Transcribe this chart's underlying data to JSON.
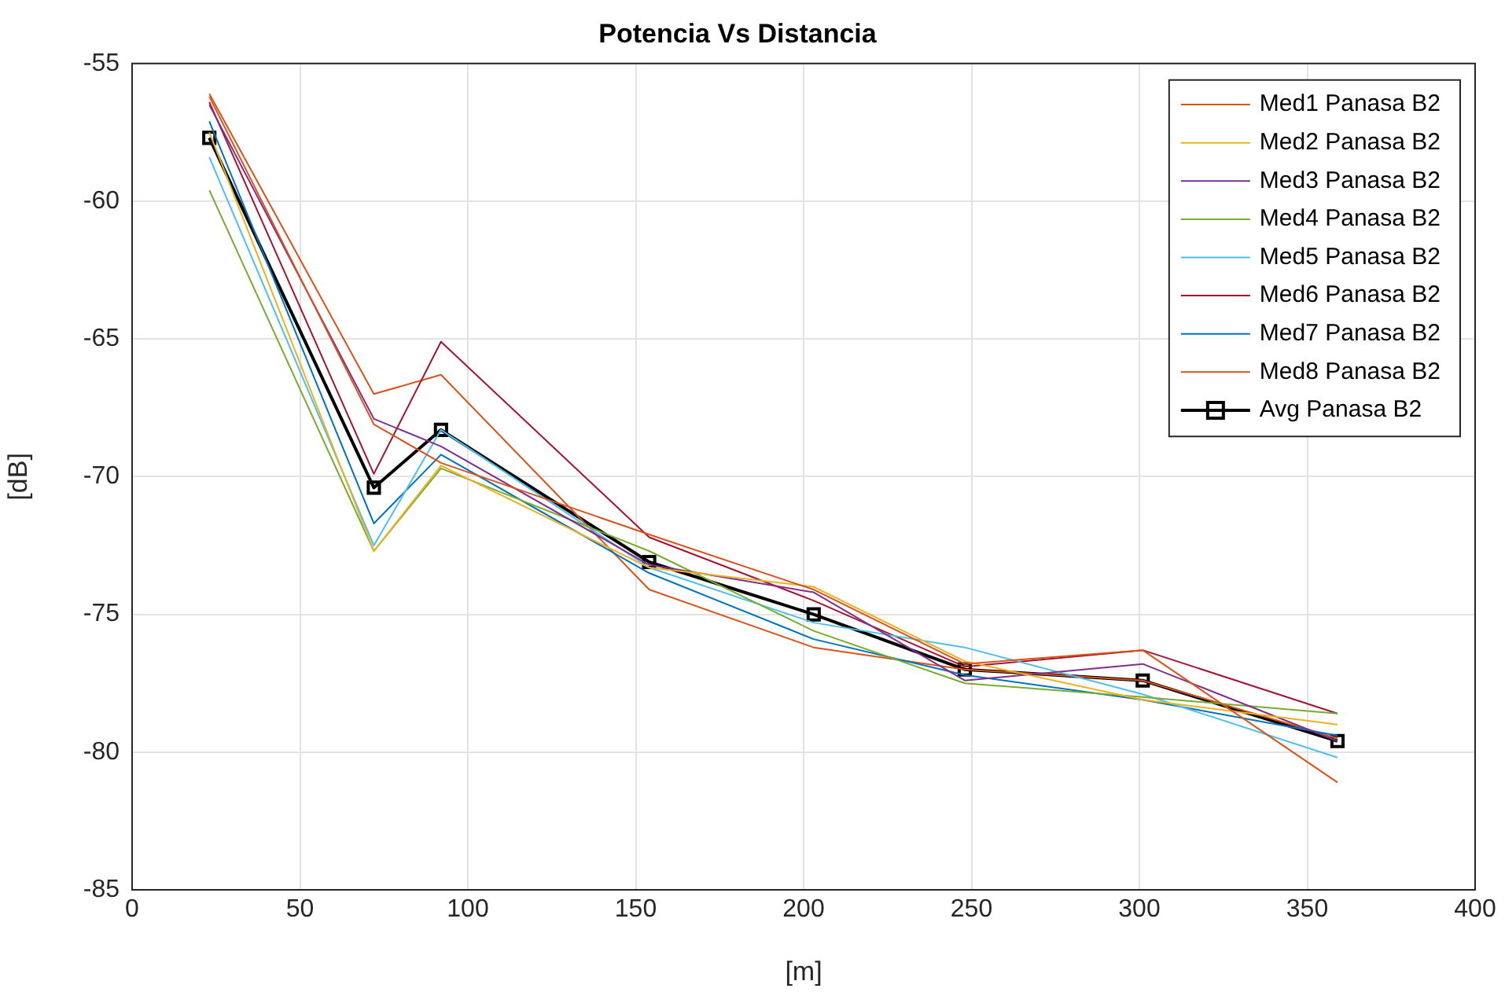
{
  "chart_data": {
    "type": "line",
    "title": "Potencia Vs Distancia",
    "xlabel": "[m]",
    "ylabel": "[dB]",
    "x": [
      23,
      72,
      92,
      154,
      203,
      248,
      301,
      359
    ],
    "xlim": [
      0,
      400
    ],
    "xticks": [
      0,
      50,
      100,
      150,
      200,
      250,
      300,
      350,
      400
    ],
    "ylim": [
      -85,
      -55
    ],
    "yticks": [
      -85,
      -80,
      -75,
      -70,
      -65,
      -60,
      -55
    ],
    "grid": true,
    "legend": "top right",
    "marker": "none",
    "line_style": "solid",
    "series": [
      {
        "name": "Med1 Panasa B2",
        "color": "#d95319",
        "values": [
          -56.2,
          -68.1,
          -69.5,
          -72.1,
          -74.1,
          -76.8,
          -76.3,
          -81.1
        ]
      },
      {
        "name": "Med2 Panasa B2",
        "color": "#edb120",
        "values": [
          -57.5,
          -72.7,
          -69.6,
          -73.3,
          -74.0,
          -76.7,
          -78.1,
          -79.0
        ]
      },
      {
        "name": "Med3 Panasa B2",
        "color": "#7e2f8e",
        "values": [
          -56.5,
          -67.9,
          -68.9,
          -73.2,
          -74.2,
          -77.4,
          -76.8,
          -79.6
        ]
      },
      {
        "name": "Med4 Panasa B2",
        "color": "#77ac30",
        "values": [
          -59.6,
          -72.7,
          -69.7,
          -72.7,
          -75.6,
          -77.5,
          -78.0,
          -78.6
        ]
      },
      {
        "name": "Med5 Panasa B2",
        "color": "#4dbeee",
        "values": [
          -58.4,
          -72.5,
          -68.3,
          -73.3,
          -75.3,
          -76.2,
          -77.9,
          -80.2
        ]
      },
      {
        "name": "Med6 Panasa B2",
        "color": "#a2142f",
        "values": [
          -56.4,
          -69.9,
          -65.1,
          -72.2,
          -74.5,
          -76.9,
          -76.3,
          -78.6
        ]
      },
      {
        "name": "Med7 Panasa B2",
        "color": "#0072bd",
        "values": [
          -57.1,
          -71.7,
          -69.2,
          -73.5,
          -75.9,
          -77.2,
          -78.1,
          -79.4
        ]
      },
      {
        "name": "Med8 Panasa B2",
        "color": "#d95319",
        "values": [
          -56.1,
          -67.0,
          -66.3,
          -74.1,
          -76.2,
          -77.0,
          -77.4,
          -79.5
        ]
      },
      {
        "name": "Avg Panasa B2",
        "color": "#000000",
        "marker": "square",
        "values": [
          -57.7,
          -70.4,
          -68.3,
          -73.1,
          -75.0,
          -77.0,
          -77.4,
          -79.6
        ]
      }
    ]
  }
}
